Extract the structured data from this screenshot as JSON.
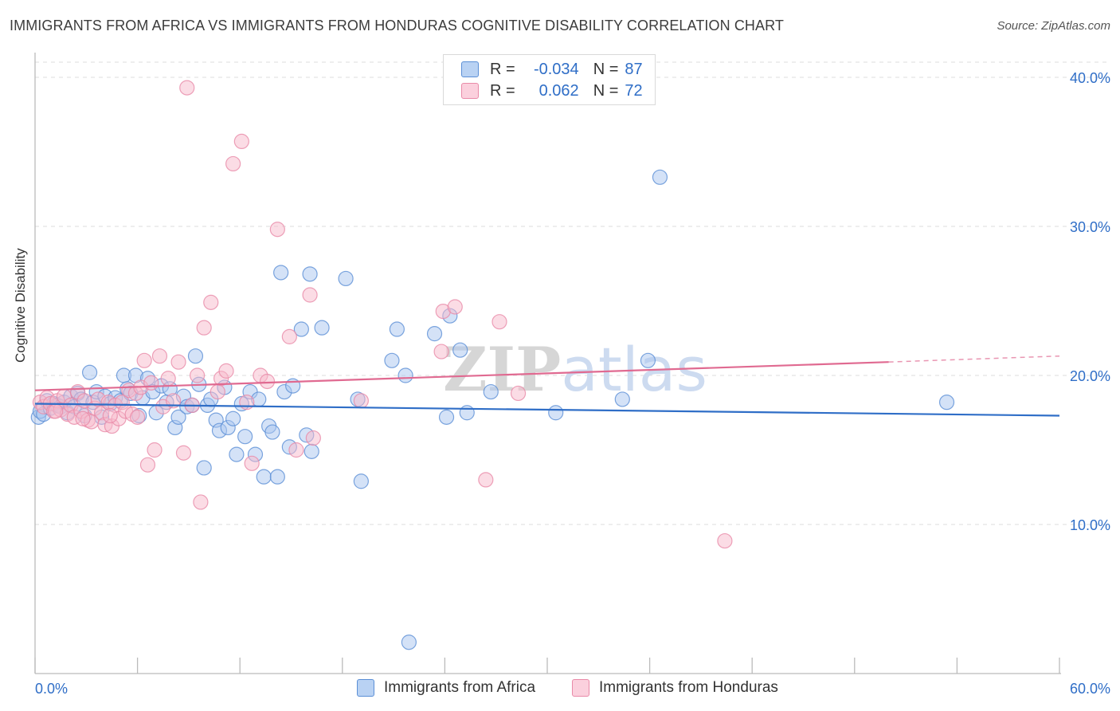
{
  "header": {
    "title": "IMMIGRANTS FROM AFRICA VS IMMIGRANTS FROM HONDURAS COGNITIVE DISABILITY CORRELATION CHART",
    "source": "Source: ZipAtlas.com"
  },
  "legend": {
    "rows": [
      {
        "r_label": "R =",
        "r_value": "-0.034",
        "n_label": "N =",
        "n_value": "87"
      },
      {
        "r_label": "R =",
        "r_value": "0.062",
        "n_label": "N =",
        "n_value": "72"
      }
    ]
  },
  "watermark": "ZIPatlas",
  "colors": {
    "africa_fill": "#a9c6ef",
    "africa_stroke": "#5b8fd6",
    "africa_line": "#2f6ec7",
    "honduras_fill": "#f7b9cb",
    "honduras_stroke": "#e98aa8",
    "honduras_line": "#e06a91",
    "axis_label": "#2f6ec7",
    "grid": "#dddddd"
  },
  "chart_data": {
    "type": "scatter",
    "title": "IMMIGRANTS FROM AFRICA VS IMMIGRANTS FROM HONDURAS COGNITIVE DISABILITY CORRELATION CHART",
    "xlabel": "",
    "ylabel": "Cognitive Disability",
    "xlim": [
      0,
      60
    ],
    "ylim": [
      0,
      40
    ],
    "x_tick_labels": [
      "0.0%",
      "60.0%"
    ],
    "y_ticks": [
      10,
      20,
      30,
      40
    ],
    "y_tick_labels": [
      "10.0%",
      "20.0%",
      "30.0%",
      "40.0%"
    ],
    "grid": true,
    "legend_placement": "top-center",
    "series": [
      {
        "name": "Immigrants from Africa",
        "R": -0.034,
        "N": 87,
        "trend": {
          "x": [
            0,
            60
          ],
          "y": [
            18.1,
            17.3
          ]
        },
        "points": [
          [
            0.2,
            17.2
          ],
          [
            0.3,
            17.6
          ],
          [
            0.5,
            17.4
          ],
          [
            0.7,
            18.3
          ],
          [
            0.9,
            17.8
          ],
          [
            1.1,
            18.1
          ],
          [
            1.3,
            18.0
          ],
          [
            1.5,
            17.9
          ],
          [
            1.7,
            18.2
          ],
          [
            1.9,
            17.5
          ],
          [
            2.1,
            18.6
          ],
          [
            2.3,
            17.9
          ],
          [
            2.5,
            18.8
          ],
          [
            2.7,
            18.4
          ],
          [
            2.9,
            17.3
          ],
          [
            3.2,
            20.2
          ],
          [
            3.4,
            18.2
          ],
          [
            3.6,
            18.9
          ],
          [
            3.9,
            17.2
          ],
          [
            4.1,
            18.6
          ],
          [
            4.4,
            18.1
          ],
          [
            4.7,
            18.5
          ],
          [
            5.0,
            18.3
          ],
          [
            5.2,
            20.0
          ],
          [
            5.4,
            19.1
          ],
          [
            5.6,
            18.8
          ],
          [
            5.9,
            20.0
          ],
          [
            6.1,
            17.3
          ],
          [
            6.3,
            18.5
          ],
          [
            6.6,
            19.8
          ],
          [
            6.9,
            18.9
          ],
          [
            7.1,
            17.5
          ],
          [
            7.4,
            19.3
          ],
          [
            7.7,
            18.2
          ],
          [
            7.9,
            19.1
          ],
          [
            8.2,
            16.5
          ],
          [
            8.4,
            17.2
          ],
          [
            8.7,
            18.6
          ],
          [
            8.9,
            17.9
          ],
          [
            9.2,
            18.0
          ],
          [
            9.4,
            21.3
          ],
          [
            9.6,
            19.4
          ],
          [
            9.9,
            13.8
          ],
          [
            10.1,
            18.0
          ],
          [
            10.3,
            18.4
          ],
          [
            10.6,
            17.0
          ],
          [
            10.8,
            16.3
          ],
          [
            11.1,
            19.2
          ],
          [
            11.3,
            16.5
          ],
          [
            11.6,
            17.1
          ],
          [
            11.8,
            14.7
          ],
          [
            12.1,
            18.1
          ],
          [
            12.3,
            15.9
          ],
          [
            12.6,
            18.9
          ],
          [
            12.9,
            14.7
          ],
          [
            13.1,
            18.4
          ],
          [
            13.4,
            13.2
          ],
          [
            13.7,
            16.6
          ],
          [
            13.9,
            16.2
          ],
          [
            14.2,
            13.2
          ],
          [
            14.4,
            26.9
          ],
          [
            14.6,
            18.9
          ],
          [
            14.9,
            15.2
          ],
          [
            15.1,
            19.3
          ],
          [
            15.6,
            23.1
          ],
          [
            15.9,
            16.0
          ],
          [
            16.1,
            26.8
          ],
          [
            16.2,
            14.9
          ],
          [
            16.8,
            23.2
          ],
          [
            18.2,
            26.5
          ],
          [
            18.9,
            18.4
          ],
          [
            19.1,
            12.9
          ],
          [
            20.9,
            21.0
          ],
          [
            21.2,
            23.1
          ],
          [
            21.7,
            20.0
          ],
          [
            23.4,
            22.8
          ],
          [
            24.1,
            17.2
          ],
          [
            24.3,
            24.0
          ],
          [
            24.9,
            21.7
          ],
          [
            25.3,
            17.5
          ],
          [
            26.7,
            18.9
          ],
          [
            30.5,
            17.5
          ],
          [
            34.4,
            18.4
          ],
          [
            36.6,
            33.3
          ],
          [
            35.9,
            21.0
          ],
          [
            53.4,
            18.2
          ],
          [
            21.9,
            2.1
          ]
        ]
      },
      {
        "name": "Immigrants from Honduras",
        "R": 0.062,
        "N": 72,
        "trend": {
          "x": [
            0,
            50
          ],
          "y": [
            19.0,
            20.9
          ]
        },
        "trend_ext": {
          "x": [
            50,
            60
          ],
          "y": [
            20.9,
            21.3
          ]
        },
        "points": [
          [
            0.3,
            18.2
          ],
          [
            0.5,
            17.9
          ],
          [
            0.7,
            18.5
          ],
          [
            0.9,
            18.1
          ],
          [
            1.1,
            17.6
          ],
          [
            1.3,
            18.3
          ],
          [
            1.5,
            17.7
          ],
          [
            1.7,
            18.6
          ],
          [
            1.9,
            17.4
          ],
          [
            2.1,
            18.0
          ],
          [
            2.3,
            17.2
          ],
          [
            2.5,
            18.9
          ],
          [
            2.7,
            17.6
          ],
          [
            2.9,
            18.3
          ],
          [
            3.1,
            17.0
          ],
          [
            3.3,
            16.9
          ],
          [
            3.5,
            17.8
          ],
          [
            3.7,
            18.4
          ],
          [
            3.9,
            17.5
          ],
          [
            4.1,
            16.7
          ],
          [
            4.3,
            18.2
          ],
          [
            4.5,
            16.6
          ],
          [
            4.7,
            18.0
          ],
          [
            4.9,
            17.1
          ],
          [
            5.1,
            18.2
          ],
          [
            5.3,
            17.6
          ],
          [
            5.5,
            19.0
          ],
          [
            5.7,
            17.4
          ],
          [
            5.9,
            18.8
          ],
          [
            6.2,
            19.2
          ],
          [
            6.4,
            21.0
          ],
          [
            6.6,
            14.0
          ],
          [
            6.8,
            19.5
          ],
          [
            7.0,
            15.0
          ],
          [
            7.3,
            21.3
          ],
          [
            7.5,
            17.9
          ],
          [
            7.8,
            19.8
          ],
          [
            8.1,
            18.3
          ],
          [
            8.4,
            20.9
          ],
          [
            8.7,
            14.8
          ],
          [
            8.9,
            39.3
          ],
          [
            9.2,
            18.0
          ],
          [
            9.5,
            20.0
          ],
          [
            9.7,
            11.5
          ],
          [
            9.9,
            23.2
          ],
          [
            10.3,
            24.9
          ],
          [
            10.7,
            18.9
          ],
          [
            10.9,
            19.8
          ],
          [
            11.2,
            20.3
          ],
          [
            11.6,
            34.2
          ],
          [
            12.1,
            35.7
          ],
          [
            12.4,
            18.2
          ],
          [
            12.7,
            14.1
          ],
          [
            13.2,
            20.0
          ],
          [
            13.6,
            19.6
          ],
          [
            14.2,
            29.8
          ],
          [
            14.9,
            22.6
          ],
          [
            15.3,
            15.0
          ],
          [
            16.1,
            25.4
          ],
          [
            16.3,
            15.8
          ],
          [
            19.1,
            18.3
          ],
          [
            23.8,
            21.6
          ],
          [
            23.9,
            24.3
          ],
          [
            24.6,
            24.6
          ],
          [
            26.4,
            13.0
          ],
          [
            27.2,
            23.6
          ],
          [
            28.3,
            18.8
          ],
          [
            40.4,
            8.9
          ],
          [
            1.2,
            17.6
          ],
          [
            2.8,
            17.1
          ],
          [
            4.4,
            17.3
          ],
          [
            6.0,
            17.2
          ]
        ]
      }
    ]
  }
}
